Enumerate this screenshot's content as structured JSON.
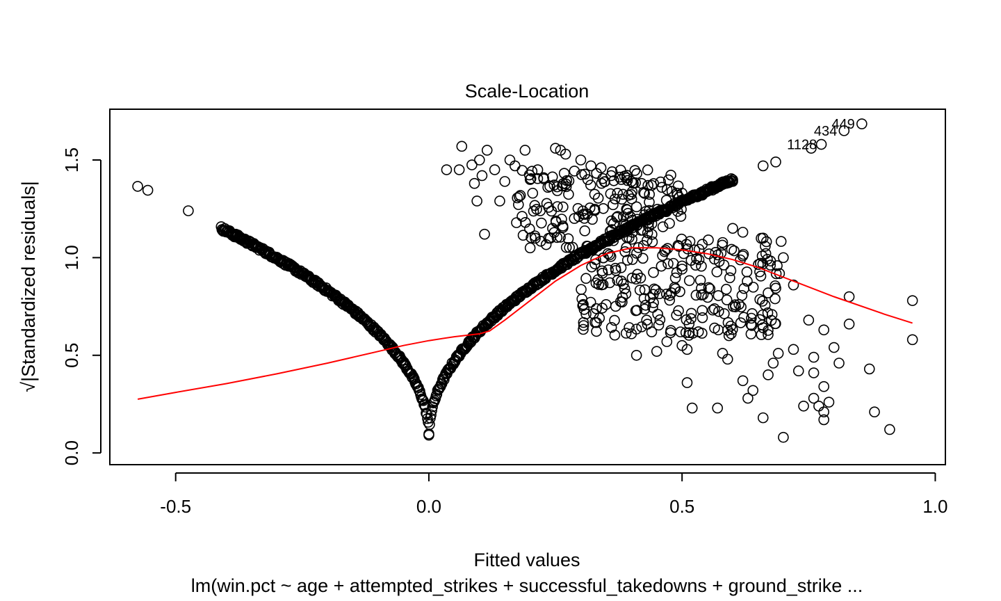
{
  "chart_data": {
    "type": "scatter",
    "title": "Scale-Location",
    "xlabel": "Fitted values",
    "ylabel": "√|Standardized residuals|",
    "subtitle": "lm(win.pct ~ age + attempted_strikes + successful_takedowns + ground_strike ...",
    "xlim": [
      -0.63,
      1.02
    ],
    "ylim": [
      -0.06,
      1.76
    ],
    "x_ticks": [
      -0.5,
      0.0,
      0.5,
      1.0
    ],
    "x_tick_labels": [
      "-0.5",
      "0.0",
      "0.5",
      "1.0"
    ],
    "y_ticks": [
      0.0,
      0.5,
      1.0,
      1.5
    ],
    "y_tick_labels": [
      "0.0",
      "0.5",
      "1.0",
      "1.5"
    ],
    "grid": false,
    "colors": {
      "points": "#000000",
      "smoother": "#ff0000"
    },
    "labeled_points": [
      {
        "label": "449",
        "x": 0.855,
        "y": 1.685
      },
      {
        "label": "434",
        "x": 0.82,
        "y": 1.65
      },
      {
        "label": "1128",
        "x": 0.78,
        "y": 1.58
      }
    ],
    "series": [
      {
        "name": "",
        "kind": "points",
        "points": [
          [
            -0.575,
            1.365
          ],
          [
            -0.555,
            1.345
          ],
          [
            -0.475,
            1.24
          ],
          [
            0.035,
            1.45
          ],
          [
            0.065,
            1.57
          ],
          [
            0.06,
            1.45
          ],
          [
            0.085,
            1.475
          ],
          [
            0.09,
            1.38
          ],
          [
            0.1,
            1.5
          ],
          [
            0.105,
            1.42
          ],
          [
            0.115,
            1.55
          ],
          [
            0.095,
            1.29
          ],
          [
            0.11,
            1.12
          ],
          [
            0.13,
            1.45
          ],
          [
            0.14,
            1.29
          ],
          [
            0.15,
            1.39
          ],
          [
            0.16,
            1.5
          ],
          [
            0.17,
            1.47
          ],
          [
            0.19,
            1.55
          ],
          [
            0.2,
            1.4
          ],
          [
            0.205,
            1.33
          ],
          [
            0.215,
            1.45
          ],
          [
            0.22,
            1.24
          ],
          [
            0.235,
            1.36
          ],
          [
            0.25,
            1.56
          ],
          [
            0.26,
            1.55
          ],
          [
            0.27,
            1.53
          ],
          [
            0.24,
            1.1
          ],
          [
            0.2,
            1.05
          ],
          [
            0.3,
            1.5
          ],
          [
            0.32,
            1.47
          ],
          [
            0.34,
            1.46
          ],
          [
            0.36,
            1.42
          ],
          [
            0.38,
            1.4
          ],
          [
            0.4,
            1.39
          ],
          [
            0.42,
            1.38
          ],
          [
            0.44,
            1.37
          ],
          [
            0.46,
            1.36
          ],
          [
            0.48,
            1.34
          ],
          [
            0.5,
            1.33
          ],
          [
            0.52,
            1.31
          ],
          [
            0.54,
            1.32
          ],
          [
            0.56,
            1.36
          ],
          [
            0.58,
            1.38
          ],
          [
            0.6,
            1.39
          ],
          [
            0.66,
            1.47
          ],
          [
            0.685,
            1.49
          ],
          [
            0.755,
            1.56
          ],
          [
            0.775,
            1.58
          ],
          [
            0.82,
            1.65
          ],
          [
            0.855,
            1.685
          ],
          [
            0.6,
            1.15
          ],
          [
            0.62,
            1.13
          ],
          [
            0.66,
            1.1
          ],
          [
            0.7,
            1.0
          ],
          [
            0.72,
            0.86
          ],
          [
            0.75,
            0.68
          ],
          [
            0.78,
            0.63
          ],
          [
            0.8,
            0.54
          ],
          [
            0.81,
            0.46
          ],
          [
            0.83,
            0.8
          ],
          [
            0.83,
            0.66
          ],
          [
            0.87,
            0.43
          ],
          [
            0.88,
            0.21
          ],
          [
            0.91,
            0.12
          ],
          [
            0.955,
            0.78
          ],
          [
            0.955,
            0.58
          ],
          [
            0.76,
            0.49
          ],
          [
            0.76,
            0.41
          ],
          [
            0.77,
            0.24
          ],
          [
            0.78,
            0.34
          ],
          [
            0.79,
            0.26
          ],
          [
            0.78,
            0.21
          ],
          [
            0.78,
            0.17
          ],
          [
            0.74,
            0.24
          ],
          [
            0.76,
            0.28
          ],
          [
            0.7,
            0.08
          ],
          [
            0.72,
            0.53
          ],
          [
            0.73,
            0.42
          ],
          [
            0.69,
            0.51
          ],
          [
            0.68,
            0.46
          ],
          [
            0.67,
            0.4
          ],
          [
            0.66,
            0.18
          ],
          [
            0.64,
            0.32
          ],
          [
            0.63,
            0.28
          ],
          [
            0.62,
            0.37
          ],
          [
            0.58,
            0.51
          ],
          [
            0.59,
            0.48
          ],
          [
            0.57,
            0.23
          ],
          [
            0.52,
            0.23
          ],
          [
            0.51,
            0.36
          ],
          [
            0.5,
            0.55
          ],
          [
            0.51,
            0.53
          ],
          [
            0.47,
            0.57
          ],
          [
            0.45,
            0.52
          ],
          [
            0.44,
            0.62
          ],
          [
            0.41,
            0.5
          ],
          [
            0.4,
            0.61
          ],
          [
            0.35,
            0.76
          ],
          [
            0.33,
            0.87
          ],
          [
            0.38,
            0.88
          ],
          [
            0.43,
            0.68
          ]
        ]
      },
      {
        "name": "",
        "kind": "points-band",
        "bands": [
          {
            "x_range": [
              0.17,
              0.5
            ],
            "y_range": [
              1.05,
              1.45
            ],
            "count": 170
          },
          {
            "x_range": [
              0.3,
              0.7
            ],
            "y_range": [
              0.6,
              1.1
            ],
            "count": 230
          }
        ]
      },
      {
        "name": "",
        "kind": "points-curve",
        "left_arm": {
          "x_range": [
            -0.41,
            0.0
          ],
          "y_at_start": 1.15,
          "y_at_end": 0.09,
          "count": 300
        },
        "right_arm": {
          "x_range": [
            0.0,
            0.6
          ],
          "y_at_start": 0.09,
          "y_at_end": 1.4,
          "count": 420
        }
      },
      {
        "name": "",
        "kind": "line",
        "points": [
          [
            -0.575,
            0.275
          ],
          [
            -0.5,
            0.31
          ],
          [
            -0.4,
            0.355
          ],
          [
            -0.3,
            0.405
          ],
          [
            -0.2,
            0.46
          ],
          [
            -0.1,
            0.52
          ],
          [
            -0.05,
            0.55
          ],
          [
            0.0,
            0.575
          ],
          [
            0.05,
            0.595
          ],
          [
            0.1,
            0.61
          ],
          [
            0.12,
            0.625
          ],
          [
            0.15,
            0.68
          ],
          [
            0.2,
            0.78
          ],
          [
            0.25,
            0.88
          ],
          [
            0.3,
            0.96
          ],
          [
            0.35,
            1.02
          ],
          [
            0.4,
            1.05
          ],
          [
            0.45,
            1.05
          ],
          [
            0.5,
            1.04
          ],
          [
            0.55,
            1.02
          ],
          [
            0.6,
            0.99
          ],
          [
            0.65,
            0.95
          ],
          [
            0.7,
            0.9
          ],
          [
            0.8,
            0.8
          ],
          [
            0.9,
            0.71
          ],
          [
            0.955,
            0.665
          ]
        ]
      }
    ]
  }
}
